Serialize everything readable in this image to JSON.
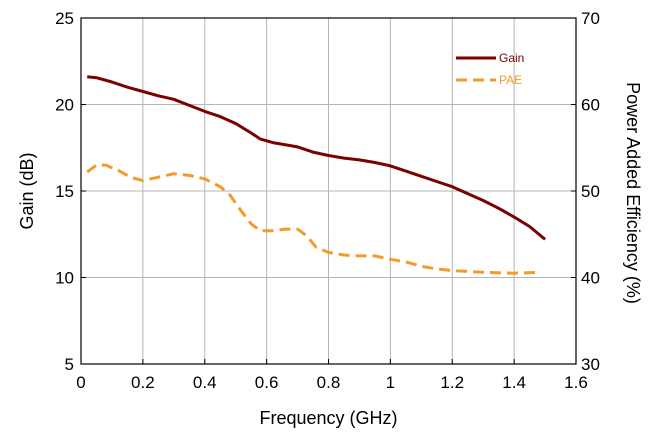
{
  "chart_data": {
    "type": "line",
    "xlabel": "Frequency (GHz)",
    "ylabel": "Gain (dB)",
    "y2label": "Power Added Efficiency (%)",
    "xlim": [
      0,
      1.6
    ],
    "ylim": [
      5,
      25
    ],
    "y2lim": [
      30,
      70
    ],
    "xticks": [
      "0",
      "0.2",
      "0.4",
      "0.6",
      "0.8",
      "1",
      "1.2",
      "1.4",
      "1.6"
    ],
    "yticks": [
      "5",
      "10",
      "15",
      "20",
      "25"
    ],
    "y2ticks": [
      "30",
      "40",
      "50",
      "60",
      "70"
    ],
    "grid": true,
    "legend_position": "top-right",
    "series": [
      {
        "name": "Gain",
        "axis": "left",
        "color": "#7b0000",
        "dash": "solid",
        "x": [
          0.02,
          0.05,
          0.1,
          0.15,
          0.2,
          0.25,
          0.3,
          0.35,
          0.4,
          0.45,
          0.5,
          0.55,
          0.58,
          0.62,
          0.7,
          0.75,
          0.8,
          0.85,
          0.9,
          0.95,
          1.0,
          1.05,
          1.1,
          1.15,
          1.2,
          1.25,
          1.3,
          1.35,
          1.4,
          1.45,
          1.5
        ],
        "y": [
          21.6,
          21.55,
          21.3,
          21.0,
          20.75,
          20.5,
          20.3,
          19.95,
          19.6,
          19.3,
          18.9,
          18.35,
          18.0,
          17.8,
          17.55,
          17.25,
          17.05,
          16.9,
          16.8,
          16.65,
          16.45,
          16.15,
          15.85,
          15.55,
          15.25,
          14.85,
          14.45,
          14.0,
          13.5,
          12.95,
          12.2
        ]
      },
      {
        "name": "PAE",
        "axis": "right",
        "color": "#f39a2a",
        "dash": "dashed",
        "x": [
          0.02,
          0.05,
          0.08,
          0.12,
          0.16,
          0.2,
          0.25,
          0.3,
          0.35,
          0.4,
          0.45,
          0.48,
          0.52,
          0.55,
          0.58,
          0.62,
          0.66,
          0.7,
          0.73,
          0.76,
          0.8,
          0.85,
          0.9,
          0.95,
          1.0,
          1.05,
          1.1,
          1.15,
          1.2,
          1.3,
          1.4,
          1.48
        ],
        "y": [
          52.2,
          53.0,
          53.0,
          52.4,
          51.6,
          51.2,
          51.6,
          52.0,
          51.8,
          51.4,
          50.5,
          49.6,
          47.6,
          46.2,
          45.4,
          45.4,
          45.6,
          45.6,
          44.8,
          43.5,
          42.9,
          42.6,
          42.5,
          42.5,
          42.1,
          41.8,
          41.3,
          41.0,
          40.8,
          40.6,
          40.5,
          40.6
        ]
      }
    ]
  }
}
